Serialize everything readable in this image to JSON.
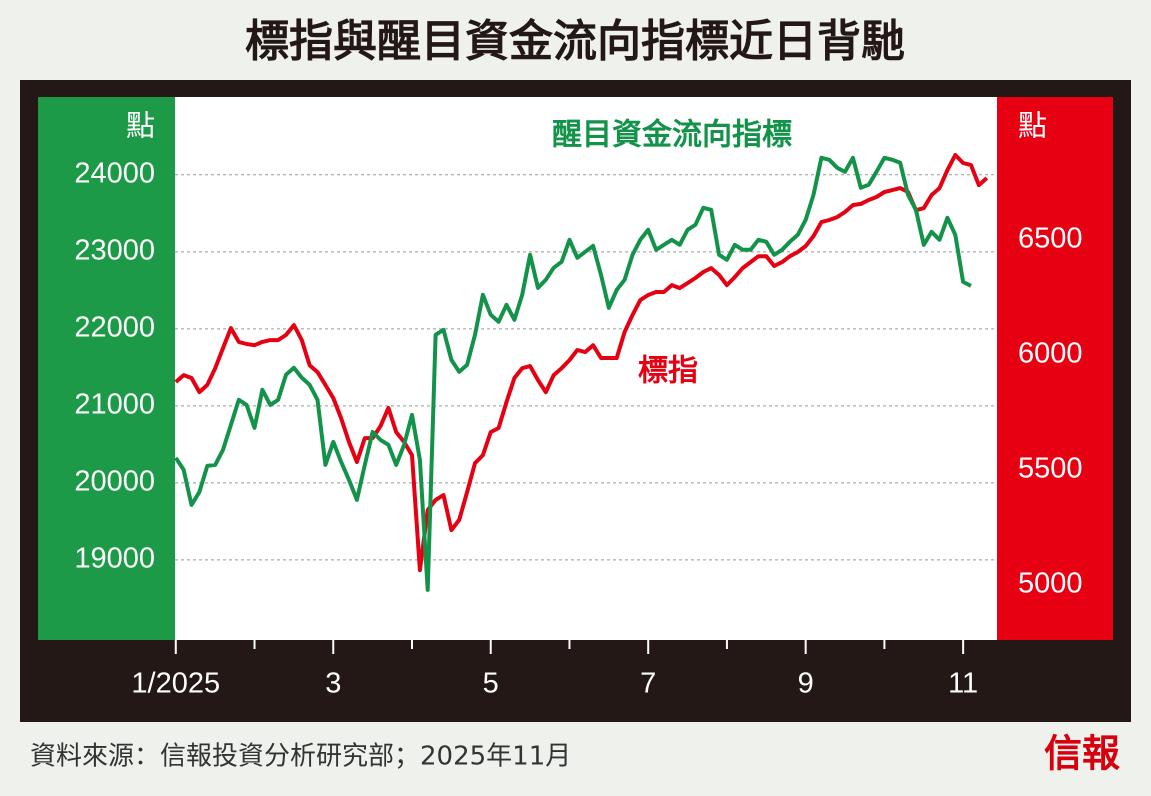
{
  "chart_data": {
    "type": "line",
    "title": "標指與醒目資金流向指標近日背馳",
    "y_unit_label": "點",
    "y2_unit_label": "點",
    "source": "資料來源：信報投資分析研究部；2025年11月",
    "logo": "信報",
    "grid": true,
    "xlim": [
      0.99,
      11.43
    ],
    "xticks": [
      {
        "value": 1,
        "label": "1/2025"
      },
      3,
      5,
      7,
      9,
      11
    ],
    "xminorticks": [
      2,
      4,
      6,
      8,
      10
    ],
    "ylim": [
      17960,
      25010
    ],
    "yticks": [
      19000,
      20000,
      21000,
      22000,
      23000,
      24000
    ],
    "y2lim": [
      4761,
      7122
    ],
    "y2ticks": [
      5000,
      5500,
      6000,
      6500
    ],
    "x": [
      1,
      1.1,
      1.2,
      1.3,
      1.4,
      1.5,
      1.6,
      1.7,
      1.8,
      1.9,
      2,
      2.1,
      2.2,
      2.3,
      2.4,
      2.5,
      2.6,
      2.7,
      2.8,
      2.9,
      3,
      3.1,
      3.2,
      3.3,
      3.4,
      3.5,
      3.6,
      3.7,
      3.8,
      3.9,
      4,
      4.1,
      4.2,
      4.3,
      4.4,
      4.5,
      4.6,
      4.7,
      4.8,
      4.9,
      5,
      5.1,
      5.2,
      5.3,
      5.4,
      5.5,
      5.6,
      5.7,
      5.8,
      5.9,
      6,
      6.1,
      6.2,
      6.3,
      6.4,
      6.5,
      6.6,
      6.7,
      6.8,
      6.9,
      7,
      7.1,
      7.2,
      7.3,
      7.4,
      7.5,
      7.6,
      7.7,
      7.8,
      7.9,
      8,
      8.1,
      8.2,
      8.3,
      8.4,
      8.5,
      8.6,
      8.7,
      8.8,
      8.9,
      9,
      9.1,
      9.2,
      9.3,
      9.4,
      9.5,
      9.6,
      9.7,
      9.8,
      9.9,
      10,
      10.1,
      10.2,
      10.3,
      10.4,
      10.5,
      10.6,
      10.7,
      10.8,
      10.9,
      11,
      11.1,
      11.2,
      11.3
    ],
    "series": [
      {
        "name": "標指",
        "color": "#e60012",
        "axis": "y2",
        "values": [
          5883,
          5913,
          5900,
          5839,
          5870,
          5943,
          6030,
          6117,
          6057,
          6048,
          6043,
          6057,
          6065,
          6065,
          6087,
          6130,
          6065,
          5956,
          5926,
          5870,
          5813,
          5726,
          5622,
          5535,
          5639,
          5639,
          5691,
          5770,
          5665,
          5622,
          5565,
          5065,
          5326,
          5370,
          5391,
          5239,
          5283,
          5404,
          5530,
          5565,
          5665,
          5683,
          5796,
          5900,
          5943,
          5952,
          5891,
          5839,
          5913,
          5943,
          5978,
          6022,
          6013,
          6043,
          5987,
          5987,
          5987,
          6100,
          6174,
          6239,
          6261,
          6274,
          6274,
          6304,
          6291,
          6313,
          6335,
          6361,
          6378,
          6348,
          6304,
          6339,
          6378,
          6404,
          6430,
          6430,
          6387,
          6404,
          6430,
          6448,
          6474,
          6517,
          6578,
          6587,
          6600,
          6622,
          6652,
          6657,
          6674,
          6687,
          6709,
          6717,
          6726,
          6709,
          6630,
          6639,
          6696,
          6726,
          6804,
          6870,
          6835,
          6826,
          6739,
          6770
        ]
      },
      {
        "name": "醒目資金流向指標",
        "color": "#13934a",
        "axis": "y",
        "values": [
          20325,
          20169,
          19714,
          19883,
          20221,
          20234,
          20429,
          20753,
          21078,
          21013,
          20714,
          21208,
          21013,
          21078,
          21403,
          21494,
          21364,
          21273,
          21078,
          20234,
          20532,
          20273,
          20039,
          19779,
          20234,
          20662,
          20558,
          20494,
          20234,
          20494,
          20883,
          20299,
          18610,
          21922,
          21987,
          21597,
          21442,
          21532,
          21922,
          22442,
          22182,
          22091,
          22312,
          22117,
          22442,
          22961,
          22532,
          22636,
          22792,
          22870,
          23156,
          22922,
          23000,
          23078,
          22701,
          22273,
          22506,
          22636,
          22961,
          23156,
          23286,
          23026,
          23091,
          23156,
          23091,
          23286,
          23351,
          23571,
          23545,
          22961,
          22896,
          23091,
          23026,
          23026,
          23156,
          23130,
          22961,
          23026,
          23130,
          23221,
          23416,
          23740,
          24221,
          24195,
          24091,
          24039,
          24221,
          23831,
          23870,
          24039,
          24221,
          24195,
          24156,
          23740,
          23545,
          23091,
          23260,
          23156,
          23442,
          23221,
          22610,
          22558,
          null,
          null
        ]
      }
    ]
  }
}
